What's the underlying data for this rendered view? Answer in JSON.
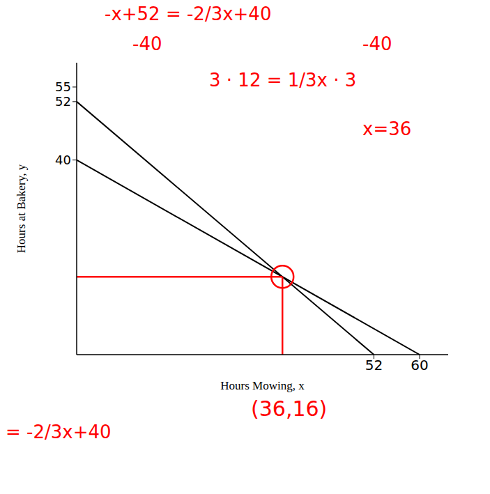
{
  "chart_data": {
    "type": "line",
    "x_label": "Hours Mowing, x",
    "y_label": "Hours at Bakery, y",
    "xlim": [
      0,
      65
    ],
    "ylim": [
      0,
      60
    ],
    "xticks": [
      52,
      60
    ],
    "yticks": [
      40,
      52,
      55
    ],
    "grid": false,
    "series": [
      {
        "color": "#000000",
        "x": [
          0,
          52
        ],
        "values": [
          52,
          0
        ]
      },
      {
        "color": "#000000",
        "x": [
          0,
          60
        ],
        "values": [
          40,
          0
        ]
      }
    ],
    "point": {
      "x": 36,
      "y": 16,
      "label": "(36,16)",
      "color": "#ff0000"
    },
    "annotations": [
      "-x+52 = -2/3x+40",
      "-40",
      "-40",
      "3 · 12 = 1/3x · 3",
      "x=36",
      "= -2/3x+40"
    ]
  }
}
